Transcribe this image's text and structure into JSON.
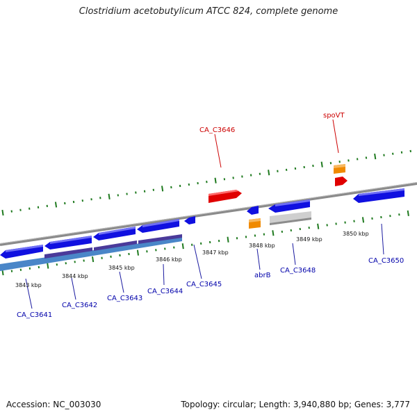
{
  "title": "Clostridium acetobutylicum ATCC 824, complete genome",
  "footer": {
    "accession_label": "Accession:",
    "accession": "NC_003030",
    "summary": "Topology: circular; Length: 3,940,880 bp; Genes: 3,777"
  },
  "colors": {
    "forward_gene": "#e80000",
    "reverse_gene": "#1010e0",
    "rna_gene": "#f08a00",
    "pseudo_gene": "#c8c8c8",
    "cds_band_light": "#4a86c8",
    "cds_band_dark": "#4a3a9a",
    "backbone": "#888888",
    "tick": "#1f7a1f",
    "label_forward": "#cc0000",
    "label_reverse": "#0000aa"
  },
  "scale": {
    "unit": "kbp",
    "ticks": [
      "3843 kbp",
      "3844 kbp",
      "3845 kbp",
      "3846 kbp",
      "3847 kbp",
      "3848 kbp",
      "3849 kbp",
      "3850 kbp"
    ]
  },
  "genes_forward": [
    {
      "label": "CA_C3646"
    },
    {
      "label": "spoVT"
    }
  ],
  "genes_reverse": [
    {
      "label": "CA_C3641"
    },
    {
      "label": "CA_C3642"
    },
    {
      "label": "CA_C3643"
    },
    {
      "label": "CA_C3644"
    },
    {
      "label": "CA_C3645"
    },
    {
      "label": "abrB"
    },
    {
      "label": "CA_C3648"
    },
    {
      "label": "CA_C3650"
    }
  ]
}
